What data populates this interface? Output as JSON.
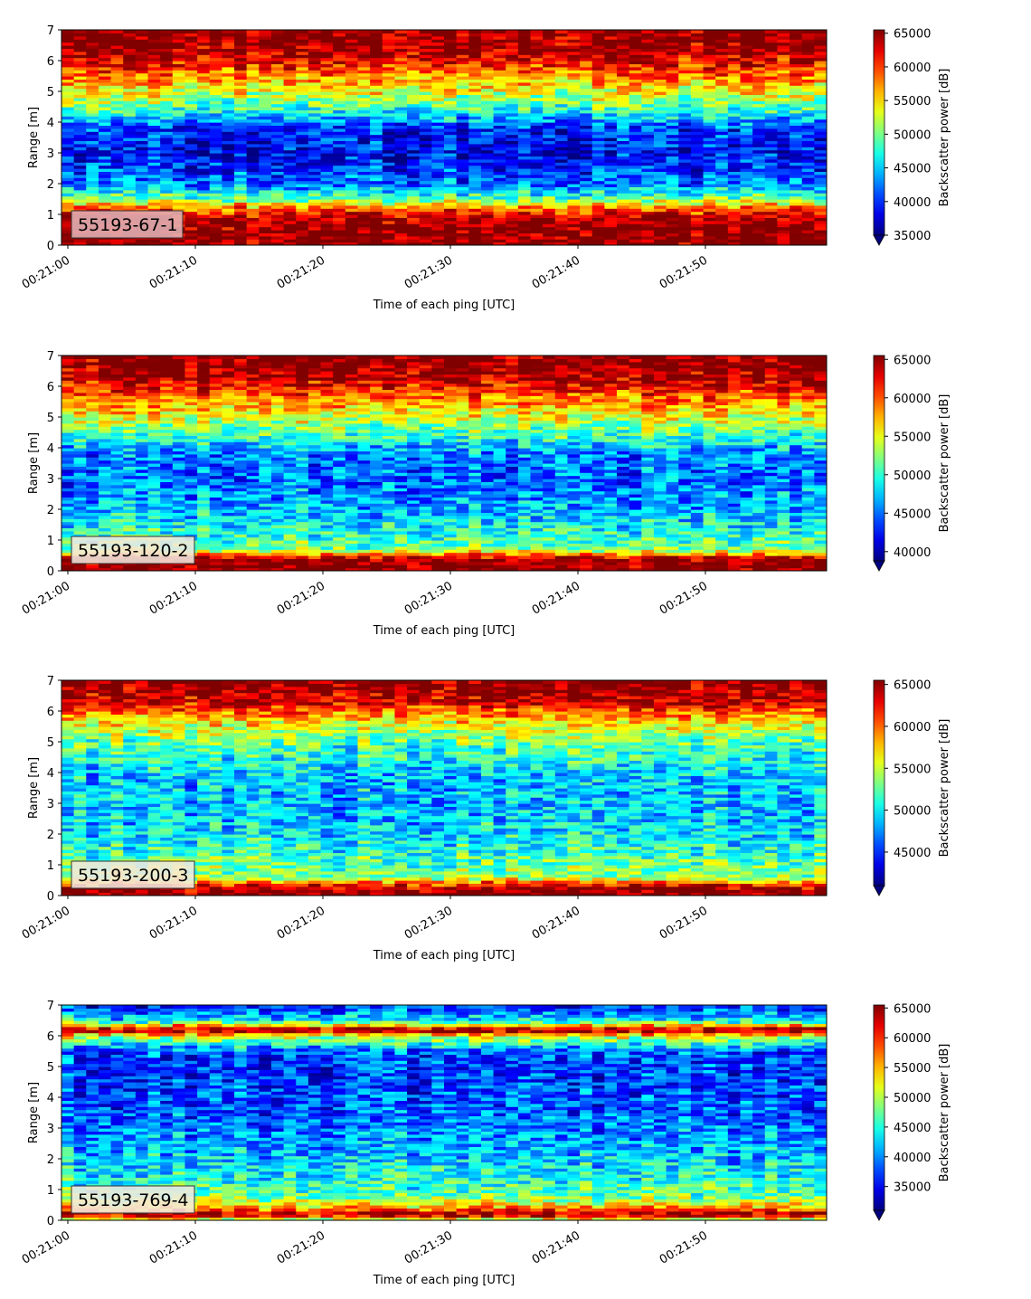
{
  "chart_data": [
    {
      "type": "heatmap",
      "label": "55193-67-1",
      "xlabel": "Time of each ping [UTC]",
      "ylabel": "Range [m]",
      "xticks": [
        "00:21:00",
        "00:21:10",
        "00:21:20",
        "00:21:30",
        "00:21:40",
        "00:21:50"
      ],
      "yticks": [
        "0",
        "1",
        "2",
        "3",
        "4",
        "5",
        "6",
        "7"
      ],
      "ylim": [
        0,
        7
      ],
      "colorbar_label": "Backscatter power [dB]",
      "colorbar_ticks": [
        "35000",
        "40000",
        "45000",
        "50000",
        "55000",
        "60000",
        "65000"
      ],
      "vmin": 35000,
      "vmax": 65500,
      "colormap": "jet",
      "extend": "min",
      "profile": [
        {
          "range": 0.1,
          "value": 65500
        },
        {
          "range": 0.5,
          "value": 65500
        },
        {
          "range": 0.9,
          "value": 64000
        },
        {
          "range": 1.2,
          "value": 59000
        },
        {
          "range": 1.5,
          "value": 50000
        },
        {
          "range": 2.0,
          "value": 42000
        },
        {
          "range": 3.0,
          "value": 38500
        },
        {
          "range": 3.8,
          "value": 40000
        },
        {
          "range": 4.5,
          "value": 49000
        },
        {
          "range": 5.2,
          "value": 55000
        },
        {
          "range": 5.8,
          "value": 60500
        },
        {
          "range": 6.3,
          "value": 64500
        },
        {
          "range": 7.0,
          "value": 65500
        }
      ]
    },
    {
      "type": "heatmap",
      "label": "55193-120-2",
      "xlabel": "Time of each ping [UTC]",
      "ylabel": "Range [m]",
      "xticks": [
        "00:21:00",
        "00:21:10",
        "00:21:20",
        "00:21:30",
        "00:21:40",
        "00:21:50"
      ],
      "yticks": [
        "0",
        "1",
        "2",
        "3",
        "4",
        "5",
        "6",
        "7"
      ],
      "ylim": [
        0,
        7
      ],
      "colorbar_label": "Backscatter power [dB]",
      "colorbar_ticks": [
        "40000",
        "45000",
        "50000",
        "55000",
        "60000",
        "65000"
      ],
      "vmin": 38800,
      "vmax": 65500,
      "colormap": "jet",
      "extend": "min",
      "profile": [
        {
          "range": 0.1,
          "value": 65500
        },
        {
          "range": 0.4,
          "value": 65500
        },
        {
          "range": 0.7,
          "value": 52000
        },
        {
          "range": 1.2,
          "value": 50000
        },
        {
          "range": 2.0,
          "value": 47000
        },
        {
          "range": 3.0,
          "value": 45000
        },
        {
          "range": 3.8,
          "value": 45500
        },
        {
          "range": 4.5,
          "value": 51000
        },
        {
          "range": 5.2,
          "value": 56000
        },
        {
          "range": 5.8,
          "value": 60500
        },
        {
          "range": 6.3,
          "value": 64500
        },
        {
          "range": 7.0,
          "value": 65500
        }
      ]
    },
    {
      "type": "heatmap",
      "label": "55193-200-3",
      "xlabel": "Time of each ping [UTC]",
      "ylabel": "Range [m]",
      "xticks": [
        "00:21:00",
        "00:21:10",
        "00:21:20",
        "00:21:30",
        "00:21:40",
        "00:21:50"
      ],
      "yticks": [
        "0",
        "1",
        "2",
        "3",
        "4",
        "5",
        "6",
        "7"
      ],
      "ylim": [
        0,
        7
      ],
      "colorbar_label": "Backscatter power [dB]",
      "colorbar_ticks": [
        "45000",
        "50000",
        "55000",
        "60000",
        "65000"
      ],
      "vmin": 41000,
      "vmax": 65500,
      "colormap": "jet",
      "extend": "min",
      "profile": [
        {
          "range": 0.1,
          "value": 65500
        },
        {
          "range": 0.3,
          "value": 64000
        },
        {
          "range": 0.6,
          "value": 54000
        },
        {
          "range": 1.2,
          "value": 52000
        },
        {
          "range": 2.0,
          "value": 49500
        },
        {
          "range": 3.0,
          "value": 48500
        },
        {
          "range": 4.0,
          "value": 49000
        },
        {
          "range": 5.0,
          "value": 52500
        },
        {
          "range": 5.7,
          "value": 57000
        },
        {
          "range": 6.3,
          "value": 63500
        },
        {
          "range": 7.0,
          "value": 65500
        }
      ]
    },
    {
      "type": "heatmap",
      "label": "55193-769-4",
      "xlabel": "Time of each ping [UTC]",
      "ylabel": "Range [m]",
      "xticks": [
        "00:21:00",
        "00:21:10",
        "00:21:20",
        "00:21:30",
        "00:21:40",
        "00:21:50"
      ],
      "yticks": [
        "0",
        "1",
        "2",
        "3",
        "4",
        "5",
        "6",
        "7"
      ],
      "ylim": [
        0,
        7
      ],
      "colorbar_label": "Backscatter power [dB]",
      "colorbar_ticks": [
        "35000",
        "40000",
        "45000",
        "50000",
        "55000",
        "60000",
        "65000"
      ],
      "vmin": 31000,
      "vmax": 65500,
      "colormap": "jet",
      "extend": "min",
      "profile": [
        {
          "range": 0.05,
          "value": 52000
        },
        {
          "range": 0.2,
          "value": 65500
        },
        {
          "range": 0.4,
          "value": 56000
        },
        {
          "range": 0.8,
          "value": 47000
        },
        {
          "range": 1.5,
          "value": 44000
        },
        {
          "range": 2.5,
          "value": 41000
        },
        {
          "range": 3.5,
          "value": 38500
        },
        {
          "range": 4.5,
          "value": 37500
        },
        {
          "range": 5.5,
          "value": 38000
        },
        {
          "range": 6.0,
          "value": 52000
        },
        {
          "range": 6.2,
          "value": 65500
        },
        {
          "range": 6.5,
          "value": 44000
        },
        {
          "range": 7.0,
          "value": 36000
        }
      ]
    }
  ]
}
